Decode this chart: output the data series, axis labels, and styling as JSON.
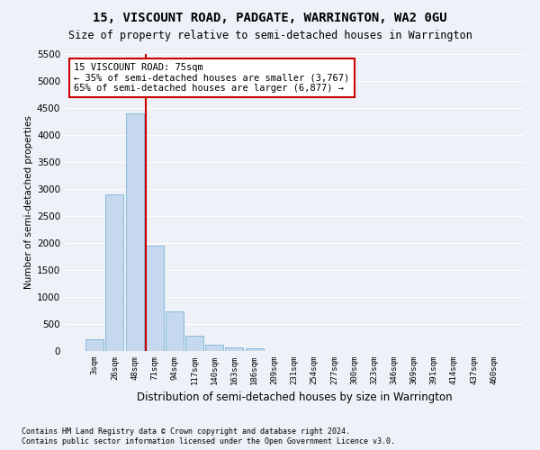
{
  "title": "15, VISCOUNT ROAD, PADGATE, WARRINGTON, WA2 0GU",
  "subtitle": "Size of property relative to semi-detached houses in Warrington",
  "xlabel": "Distribution of semi-detached houses by size in Warrington",
  "ylabel": "Number of semi-detached properties",
  "bar_values": [
    220,
    2900,
    4400,
    1950,
    730,
    290,
    115,
    65,
    55,
    0,
    0,
    0,
    0,
    0,
    0,
    0,
    0,
    0,
    0,
    0,
    0
  ],
  "bar_labels": [
    "3sqm",
    "26sqm",
    "48sqm",
    "71sqm",
    "94sqm",
    "117sqm",
    "140sqm",
    "163sqm",
    "186sqm",
    "209sqm",
    "231sqm",
    "254sqm",
    "277sqm",
    "300sqm",
    "323sqm",
    "346sqm",
    "369sqm",
    "391sqm",
    "414sqm",
    "437sqm",
    "460sqm"
  ],
  "bar_color": "#c5d8ed",
  "bar_edge_color": "#7ab3d4",
  "ylim": [
    0,
    5500
  ],
  "yticks": [
    0,
    500,
    1000,
    1500,
    2000,
    2500,
    3000,
    3500,
    4000,
    4500,
    5000,
    5500
  ],
  "vline_x": 2.575,
  "annotation_title": "15 VISCOUNT ROAD: 75sqm",
  "annotation_line1": "← 35% of semi-detached houses are smaller (3,767)",
  "annotation_line2": "65% of semi-detached houses are larger (6,877) →",
  "footer_line1": "Contains HM Land Registry data © Crown copyright and database right 2024.",
  "footer_line2": "Contains public sector information licensed under the Open Government Licence v3.0.",
  "background_color": "#eef2f8",
  "grid_color": "#ffffff",
  "annotation_box_color": "#ffffff",
  "annotation_box_edge": "#cc0000",
  "vline_color": "#cc0000"
}
